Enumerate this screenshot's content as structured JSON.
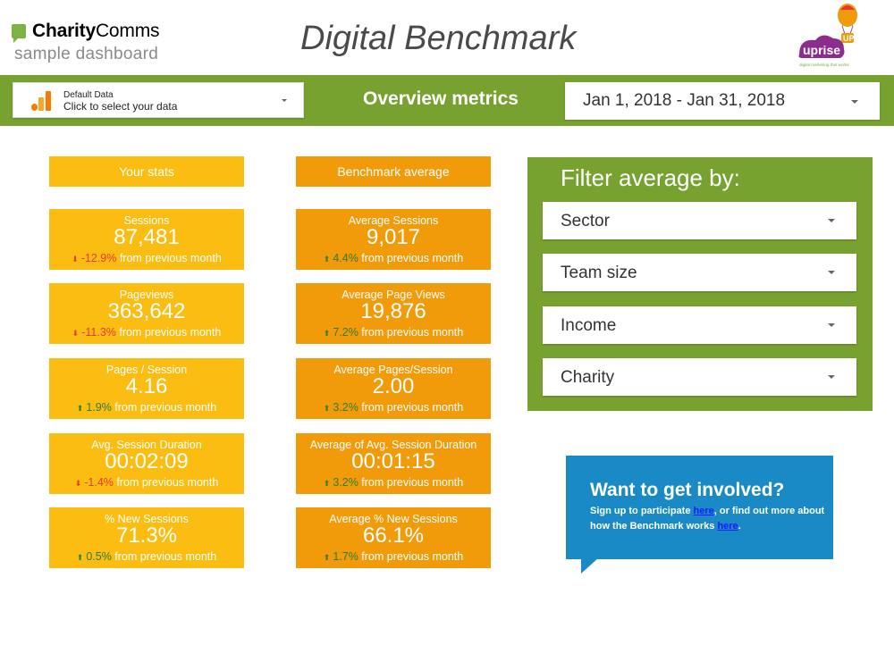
{
  "header": {
    "logo_bold": "Charity",
    "logo_regular": "Comms",
    "subtitle": "sample dashboard",
    "title": "Digital Benchmark",
    "partner_logo_text": "uprise",
    "partner_logo_badge": "UP",
    "partner_logo_tagline": "digital marketing that works"
  },
  "toolbar": {
    "data_source_line1": "Default Data",
    "data_source_line2": "Click to select your data",
    "section_title": "Overview metrics",
    "date_range": "Jan 1, 2018 - Jan 31, 2018"
  },
  "your_stats": {
    "heading": "Your stats",
    "cards": [
      {
        "label": "Sessions",
        "value": "87,481",
        "arrow": "⬇",
        "change": "-12.9%",
        "suffix": " from previous month",
        "direction": "down"
      },
      {
        "label": "Pageviews",
        "value": "363,642",
        "arrow": "⬇",
        "change": "-11.3%",
        "suffix": " from previous month",
        "direction": "down"
      },
      {
        "label": "Pages / Session",
        "value": "4.16",
        "arrow": "⬆",
        "change": "1.9%",
        "suffix": " from previous month",
        "direction": "up"
      },
      {
        "label": "Avg. Session Duration",
        "value": "00:02:09",
        "arrow": "⬇",
        "change": "-1.4%",
        "suffix": " from previous month",
        "direction": "down"
      },
      {
        "label": "% New Sessions",
        "value": "71.3%",
        "arrow": "⬆",
        "change": "0.5%",
        "suffix": " from previous month",
        "direction": "up"
      }
    ]
  },
  "benchmark": {
    "heading": "Benchmark average",
    "cards": [
      {
        "label": "Average Sessions",
        "value": "9,017",
        "arrow": "⬆",
        "change": "4.4%",
        "suffix": " from previous month",
        "direction": "up"
      },
      {
        "label": "Average Page Views",
        "value": "19,876",
        "arrow": "⬆",
        "change": "7.2%",
        "suffix": " from previous month",
        "direction": "up"
      },
      {
        "label": "Average Pages/Session",
        "value": "2.00",
        "arrow": "⬆",
        "change": "3.2%",
        "suffix": " from previous month",
        "direction": "up"
      },
      {
        "label": "Average of Avg. Session Duration",
        "value": "00:01:15",
        "arrow": "⬆",
        "change": "3.2%",
        "suffix": " from previous month",
        "direction": "up"
      },
      {
        "label": "Average % New Sessions",
        "value": "66.1%",
        "arrow": "⬆",
        "change": "1.7%",
        "suffix": " from previous month",
        "direction": "up"
      }
    ]
  },
  "filter": {
    "title": "Filter average by:",
    "options": [
      "Sector",
      "Team size",
      "Income",
      "Charity"
    ]
  },
  "callout": {
    "heading": "Want to get involved?",
    "text1": "Sign up to participate ",
    "link1": "here",
    "text2": ", or find out more about how the Benchmark works ",
    "link2": "here",
    "text3": "."
  },
  "colors": {
    "green": "#78a22f",
    "yellow": "#fbbd12",
    "orange": "#f29b0a",
    "blue": "#1a8ac6",
    "down": "#e53935",
    "up": "#2e7d32"
  },
  "icons": [
    "charitycomms-logo-icon",
    "uprise-balloon-icon",
    "google-analytics-icon",
    "chevron-down-icon",
    "arrow-up-icon",
    "arrow-down-icon"
  ]
}
